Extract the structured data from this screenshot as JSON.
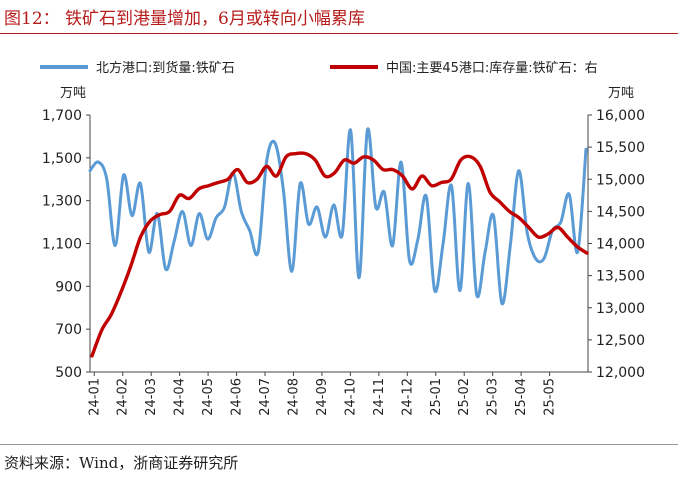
{
  "figure": {
    "title": "图12： 铁矿石到港量增加，6月或转向小幅累库",
    "source": "资料来源：Wind，浙商证券研究所"
  },
  "chart_data": {
    "type": "line",
    "legend_position": "top",
    "y_left": {
      "unit": "万吨",
      "min": 500,
      "max": 1700,
      "ticks": [
        500,
        700,
        900,
        1100,
        1300,
        1500,
        1700
      ],
      "tick_labels": [
        "500",
        "700",
        "900",
        "1,100",
        "1,300",
        "1,500",
        "1,700"
      ]
    },
    "y_right": {
      "unit": "万吨",
      "min": 12000,
      "max": 16000,
      "ticks": [
        12000,
        12500,
        13000,
        13500,
        14000,
        14500,
        15000,
        15500,
        16000
      ],
      "tick_labels": [
        "12,000",
        "12,500",
        "13,000",
        "13,500",
        "14,000",
        "14,500",
        "15,000",
        "15,500",
        "16,000"
      ]
    },
    "x_tick_labels": [
      "24-01",
      "24-02",
      "24-03",
      "24-04",
      "24-05",
      "24-06",
      "24-07",
      "24-08",
      "24-09",
      "24-10",
      "24-11",
      "24-12",
      "25-01",
      "25-02",
      "25-03",
      "25-04",
      "25-05"
    ],
    "series": [
      {
        "name": "北方港口:到货量:铁矿石",
        "axis": "left",
        "color": "#5b9bd5",
        "values": [
          1440,
          1480,
          1400,
          1090,
          1420,
          1230,
          1380,
          1060,
          1240,
          980,
          1110,
          1250,
          1090,
          1240,
          1120,
          1220,
          1270,
          1430,
          1250,
          1160,
          1060,
          1480,
          1570,
          1350,
          970,
          1380,
          1190,
          1270,
          1130,
          1280,
          1140,
          1630,
          940,
          1630,
          1270,
          1340,
          1090,
          1480,
          1020,
          1120,
          1320,
          880,
          1100,
          1370,
          880,
          1380,
          860,
          1060,
          1230,
          820,
          1090,
          1440,
          1150,
          1030,
          1030,
          1160,
          1200,
          1330,
          1060,
          1540
        ]
      },
      {
        "name": "中国:主要45港口:库存量:铁矿石：右",
        "axis": "right",
        "color": "#c00000",
        "values": [
          12250,
          12650,
          12900,
          13250,
          13650,
          14100,
          14350,
          14450,
          14500,
          14750,
          14700,
          14850,
          14900,
          14950,
          15000,
          15150,
          14950,
          15000,
          15200,
          15050,
          15350,
          15400,
          15400,
          15300,
          15050,
          15100,
          15300,
          15250,
          15350,
          15300,
          15150,
          15150,
          15050,
          14850,
          15050,
          14900,
          14950,
          15000,
          15300,
          15350,
          15200,
          14800,
          14650,
          14500,
          14400,
          14250,
          14100,
          14150,
          14250,
          14100,
          13950,
          13850
        ]
      }
    ]
  }
}
